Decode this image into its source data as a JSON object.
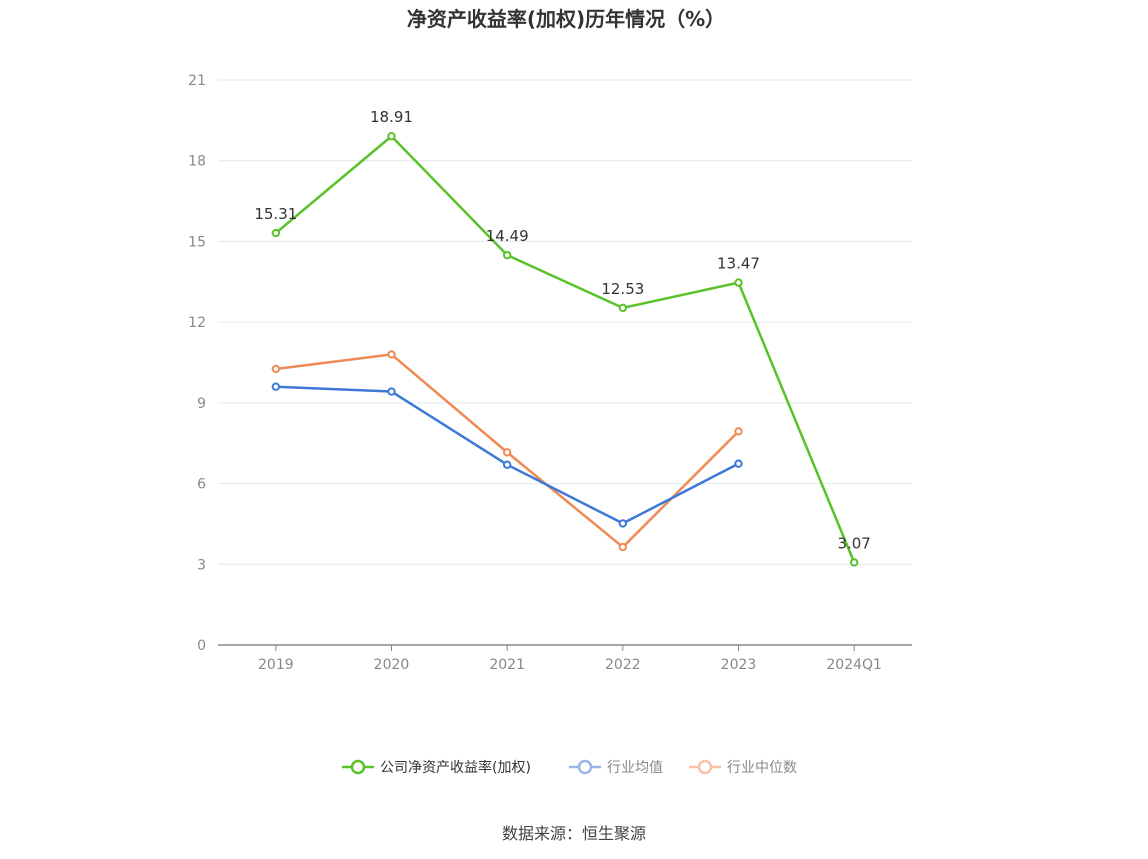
{
  "chart_data": {
    "type": "line",
    "title": "净资产收益率(加权)历年情况（%）",
    "categories": [
      "2019",
      "2020",
      "2021",
      "2022",
      "2023",
      "2024Q1"
    ],
    "ylim": [
      0,
      21
    ],
    "yticks": [
      0,
      3,
      6,
      9,
      12,
      15,
      18,
      21
    ],
    "grid": true,
    "legend_position": "bottom-center",
    "series": [
      {
        "name": "公司净资产收益率(加权)",
        "color": "#5ac229",
        "values": [
          15.31,
          18.91,
          14.49,
          12.53,
          13.47,
          3.07
        ],
        "labels": [
          "15.31",
          "18.91",
          "14.49",
          "12.53",
          "13.47",
          "3.07"
        ]
      },
      {
        "name": "行业均值",
        "color": "#3e78d8",
        "values": [
          9.6,
          9.42,
          6.7,
          4.52,
          6.74,
          null
        ]
      },
      {
        "name": "行业中位数",
        "color": "#f08a55",
        "values": [
          10.26,
          10.8,
          7.16,
          3.64,
          7.94,
          null
        ]
      }
    ]
  },
  "legend_colors": {
    "active_text": "#333333",
    "inactive_text": "#888888",
    "blue_faded": "#98b5ea",
    "orange_faded": "#f7c1a6"
  },
  "source_text": "数据来源：恒生聚源"
}
